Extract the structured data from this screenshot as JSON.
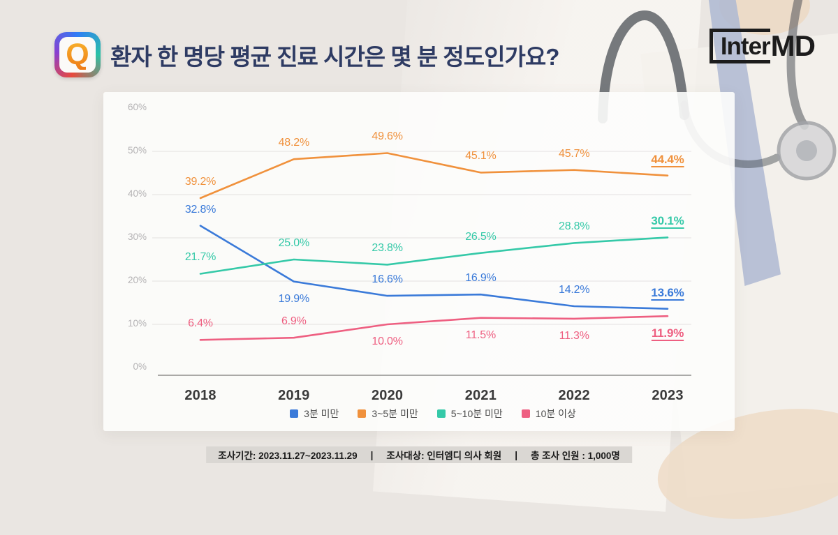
{
  "header": {
    "q_badge": "Q",
    "title": "환자 한 명당 평균 진료 시간은 몇 분 정도인가요?",
    "logo": {
      "inner": "Inter",
      "md": "MD"
    }
  },
  "chart_data": {
    "type": "line",
    "title": "환자 한 명당 평균 진료 시간은 몇 분 정도인가요?",
    "x_labels": [
      "2018",
      "2019",
      "2020",
      "2021",
      "2022",
      "2023"
    ],
    "ylim": [
      0,
      60
    ],
    "y_ticks": [
      "60%",
      "50%",
      "40%",
      "30%",
      "20%",
      "10%",
      "0%"
    ],
    "y_tick_values": [
      60,
      50,
      40,
      30,
      20,
      10,
      0
    ],
    "grid_values": [
      50,
      40,
      30,
      20,
      10
    ],
    "grid": "horizontal-only",
    "legend_position": "bottom",
    "colors": {
      "axis": "#8f8e8c",
      "gridline": "#e8e6e5",
      "tick_text": "#b4b2b4",
      "year_text": "#3a3a3a"
    },
    "series": [
      {
        "name": "3분 미만",
        "color": "#3a7ad9",
        "values": [
          32.8,
          19.9,
          16.6,
          16.9,
          14.2,
          13.6
        ],
        "label_sides": [
          "above",
          "below",
          "above",
          "above",
          "above",
          "above"
        ]
      },
      {
        "name": "3~5분 미만",
        "color": "#f0913c",
        "values": [
          39.2,
          48.2,
          49.6,
          45.1,
          45.7,
          44.4
        ],
        "label_sides": [
          "above",
          "above",
          "above",
          "above",
          "above",
          "above"
        ]
      },
      {
        "name": "5~10분 미만",
        "color": "#35c9a8",
        "values": [
          21.7,
          25.0,
          23.8,
          26.5,
          28.8,
          30.1
        ],
        "label_sides": [
          "above",
          "above",
          "above",
          "above",
          "above",
          "above"
        ]
      },
      {
        "name": "10분 이상",
        "color": "#ee5f81",
        "values": [
          6.4,
          6.9,
          10.0,
          11.5,
          11.3,
          11.9
        ],
        "label_sides": [
          "above",
          "above",
          "below",
          "below",
          "below",
          "below"
        ]
      }
    ]
  },
  "footer": {
    "separator": "|",
    "items": [
      "조사기간: 2023.11.27~2023.11.29",
      "조사대상: 인터엠디 의사 회원",
      "총 조사 인원 : 1,000명"
    ]
  }
}
